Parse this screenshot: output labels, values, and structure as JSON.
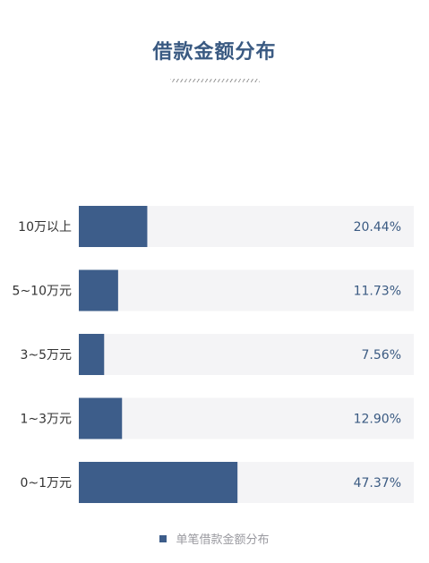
{
  "title": "借款金额分布",
  "chart_data": {
    "type": "bar",
    "orientation": "horizontal",
    "categories": [
      "10万以上",
      "5~10万元",
      "3~5万元",
      "1~3万元",
      "0~1万元"
    ],
    "values": [
      20.44,
      11.73,
      7.56,
      12.9,
      47.37
    ],
    "value_labels": [
      "20.44%",
      "11.73%",
      "7.56%",
      "12.90%",
      "47.37%"
    ],
    "xlim": [
      0,
      100
    ],
    "series": [
      {
        "name": "单笔借款金额分布",
        "values": [
          20.44,
          11.73,
          7.56,
          12.9,
          47.37
        ]
      }
    ],
    "legend_position": "bottom",
    "grid": false
  },
  "colors": {
    "bar": "#3d5d8a",
    "track": "#f4f4f6",
    "title": "#3a5a82",
    "category_text": "#333333",
    "value_text": "#3a5a82"
  }
}
